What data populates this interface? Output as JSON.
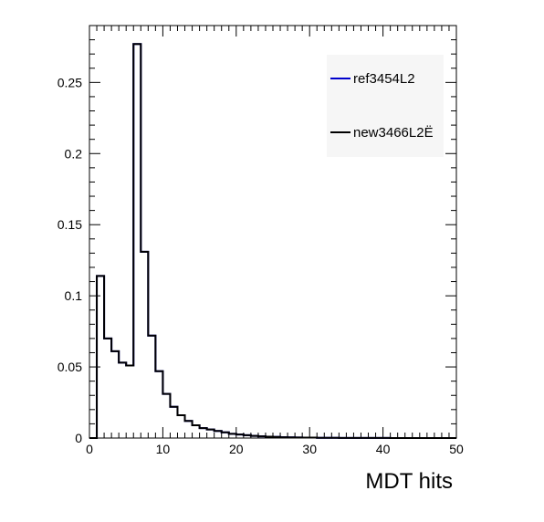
{
  "chart_data": {
    "type": "histogram",
    "title": "",
    "xlabel": "MDT hits",
    "ylabel": "",
    "xlim": [
      0,
      50
    ],
    "ylim": [
      0,
      0.29
    ],
    "bin_width": 1,
    "x_ticks": [
      0,
      10,
      20,
      30,
      40,
      50
    ],
    "x_tick_labels": [
      "0",
      "10",
      "20",
      "30",
      "40",
      "50"
    ],
    "y_ticks": [
      0,
      0.05,
      0.1,
      0.15,
      0.2,
      0.25
    ],
    "y_tick_labels": [
      "0",
      "0.05",
      "0.1",
      "0.15",
      "0.2",
      "0.25"
    ],
    "grid": false,
    "legend_position": "top-right",
    "series": [
      {
        "name": "ref3454L2",
        "color": "#0000cc",
        "values": [
          0,
          0.114,
          0.07,
          0.061,
          0.053,
          0.051,
          0.277,
          0.131,
          0.072,
          0.047,
          0.031,
          0.022,
          0.016,
          0.012,
          0.009,
          0.007,
          0.006,
          0.005,
          0.004,
          0.003,
          0.0025,
          0.002,
          0.0015,
          0.0012,
          0.001,
          0.0008,
          0.0006,
          0.0005,
          0.0004,
          0.0003,
          0.0003,
          0.0002,
          0.0002,
          0.0002,
          0.0001,
          0.0001,
          0.0001,
          0.0001,
          0.0001,
          0.0001,
          0.0001,
          0,
          0,
          0,
          0,
          0,
          0,
          0,
          0,
          0
        ]
      },
      {
        "name": "new3466L2Ë",
        "color": "#000000",
        "values": [
          0,
          0.114,
          0.07,
          0.061,
          0.053,
          0.051,
          0.277,
          0.131,
          0.072,
          0.047,
          0.031,
          0.022,
          0.016,
          0.012,
          0.009,
          0.007,
          0.006,
          0.005,
          0.004,
          0.003,
          0.0025,
          0.002,
          0.0015,
          0.0012,
          0.001,
          0.0008,
          0.0006,
          0.0005,
          0.0004,
          0.0003,
          0.0003,
          0.0002,
          0.0002,
          0.0002,
          0.0001,
          0.0001,
          0.0001,
          0.0001,
          0.0001,
          0.0001,
          0.0001,
          0,
          0,
          0,
          0,
          0,
          0,
          0,
          0,
          0
        ]
      }
    ]
  }
}
